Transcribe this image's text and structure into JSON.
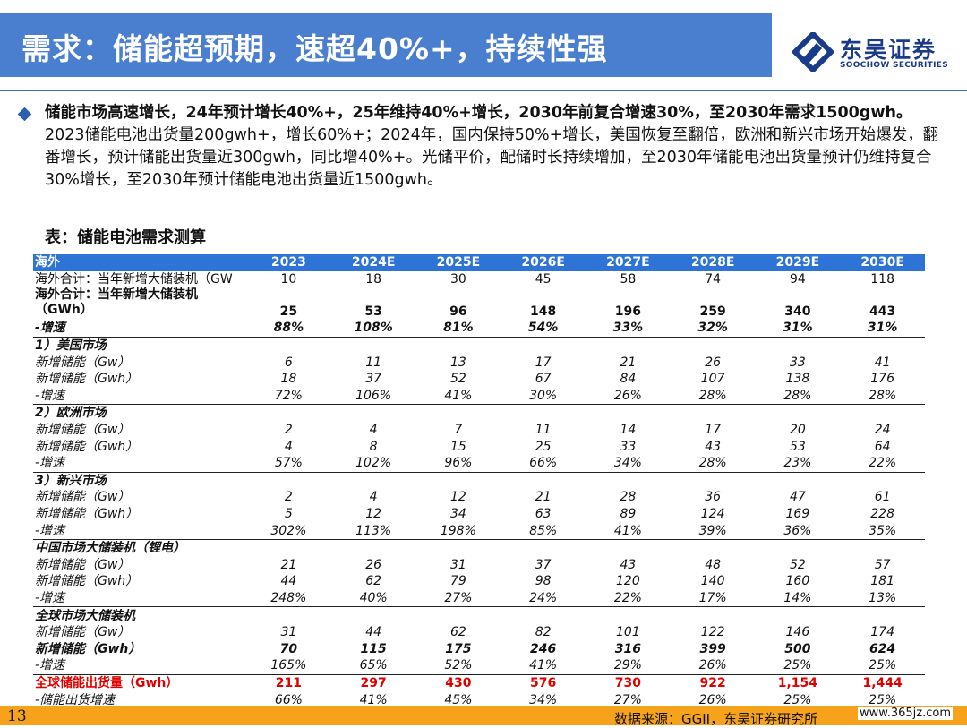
{
  "header": {
    "title": "需求：储能超预期，速超40%+，持续性强",
    "logo_cn": "东吴证券",
    "logo_en": "SOOCHOW SECURITIES"
  },
  "body": {
    "para_bold": "储能市场高速增长，24年预计增长40%+，25年维持40%+增长，2030年前复合增速30%，至2030年需求1500gwh。",
    "para_normal": "2023储能电池出货量200gwh+，增长60%+；2024年，国内保持50%+增长，美国恢复至翻倍，欧洲和新兴市场开始爆发，翻番增长，预计储能出货量近300gwh，同比增40%+。光储平价，配储时长持续增加，至2030年储能电池出货量预计仍维持复合30%增长，至2030年预计储能电池出货量近1500gwh。",
    "table_title": "表：储能电池需求测算"
  },
  "table": {
    "header": [
      "海外",
      "2023",
      "2024E",
      "2025E",
      "2026E",
      "2027E",
      "2028E",
      "2029E",
      "2030E"
    ],
    "rows": [
      {
        "style": "normal",
        "label": "海外合计：当年新增大储装机（GW",
        "values": [
          "10",
          "18",
          "30",
          "45",
          "58",
          "74",
          "94",
          "118"
        ]
      },
      {
        "style": "tall",
        "label": "海外合计：当年新增大储装机（GWh）",
        "values": [
          "25",
          "53",
          "96",
          "148",
          "196",
          "259",
          "340",
          "443"
        ]
      },
      {
        "style": "bolditalic",
        "label": "-增速",
        "values": [
          "88%",
          "108%",
          "81%",
          "54%",
          "33%",
          "32%",
          "31%",
          "31%"
        ]
      },
      {
        "style": "section",
        "label": "1）美国市场",
        "values": [
          "",
          "",
          "",
          "",
          "",
          "",
          "",
          ""
        ]
      },
      {
        "style": "italic",
        "label": "新增储能（Gw）",
        "values": [
          "6",
          "11",
          "13",
          "17",
          "21",
          "26",
          "33",
          "41"
        ]
      },
      {
        "style": "italic",
        "label": "新增储能（Gwh）",
        "values": [
          "18",
          "37",
          "52",
          "67",
          "84",
          "107",
          "138",
          "176"
        ]
      },
      {
        "style": "italic",
        "label": "-增速",
        "values": [
          "72%",
          "106%",
          "41%",
          "30%",
          "26%",
          "28%",
          "28%",
          "28%"
        ]
      },
      {
        "style": "section",
        "label": "2）欧洲市场",
        "values": [
          "",
          "",
          "",
          "",
          "",
          "",
          "",
          ""
        ]
      },
      {
        "style": "italic",
        "label": "新增储能（Gw）",
        "values": [
          "2",
          "4",
          "7",
          "11",
          "14",
          "17",
          "20",
          "24"
        ]
      },
      {
        "style": "italic",
        "label": "新增储能（Gwh）",
        "values": [
          "4",
          "8",
          "15",
          "25",
          "33",
          "43",
          "53",
          "64"
        ]
      },
      {
        "style": "italic",
        "label": "-增速",
        "values": [
          "57%",
          "102%",
          "96%",
          "66%",
          "34%",
          "28%",
          "23%",
          "22%"
        ]
      },
      {
        "style": "section",
        "label": "3）新兴市场",
        "values": [
          "",
          "",
          "",
          "",
          "",
          "",
          "",
          ""
        ]
      },
      {
        "style": "italic",
        "label": "新增储能（Gw）",
        "values": [
          "2",
          "4",
          "12",
          "21",
          "28",
          "36",
          "47",
          "61"
        ]
      },
      {
        "style": "italic",
        "label": "新增储能（Gwh）",
        "values": [
          "5",
          "12",
          "34",
          "63",
          "89",
          "124",
          "169",
          "228"
        ]
      },
      {
        "style": "italic",
        "label": "-增速",
        "values": [
          "302%",
          "113%",
          "198%",
          "85%",
          "41%",
          "39%",
          "36%",
          "35%"
        ]
      },
      {
        "style": "section",
        "label": "中国市场大储装机（锂电）",
        "values": [
          "",
          "",
          "",
          "",
          "",
          "",
          "",
          ""
        ]
      },
      {
        "style": "italic",
        "label": "新增储能（Gw）",
        "values": [
          "21",
          "26",
          "31",
          "37",
          "43",
          "48",
          "52",
          "57"
        ]
      },
      {
        "style": "italic",
        "label": "新增储能（Gwh）",
        "values": [
          "44",
          "62",
          "79",
          "98",
          "120",
          "140",
          "160",
          "181"
        ]
      },
      {
        "style": "italic",
        "label": "-增速",
        "values": [
          "248%",
          "40%",
          "27%",
          "24%",
          "22%",
          "17%",
          "14%",
          "13%"
        ]
      },
      {
        "style": "section",
        "label": "全球市场大储装机",
        "values": [
          "",
          "",
          "",
          "",
          "",
          "",
          "",
          ""
        ]
      },
      {
        "style": "italic",
        "label": "新增储能（Gw）",
        "values": [
          "31",
          "44",
          "62",
          "82",
          "101",
          "122",
          "146",
          "174"
        ]
      },
      {
        "style": "bolditalic",
        "label": "新增储能（Gwh）",
        "values": [
          "70",
          "115",
          "175",
          "246",
          "316",
          "399",
          "500",
          "624"
        ]
      },
      {
        "style": "italic",
        "label": "-增速",
        "values": [
          "165%",
          "65%",
          "52%",
          "41%",
          "29%",
          "26%",
          "25%",
          "25%"
        ]
      },
      {
        "style": "red",
        "label": "全球储能出货量（Gwh）",
        "values": [
          "211",
          "297",
          "430",
          "576",
          "730",
          "922",
          "1,154",
          "1,444"
        ]
      },
      {
        "style": "italic bottom",
        "label": "-储能出货增速",
        "values": [
          "66%",
          "41%",
          "45%",
          "34%",
          "27%",
          "26%",
          "25%",
          "25%"
        ]
      }
    ]
  },
  "footer": {
    "page_number": "13",
    "source": "数据来源：GGII，东吴证券研究所",
    "watermark": "www.365jz.com"
  },
  "colors": {
    "title_bar": "#4a7fd0",
    "table_header": "#2e73d6",
    "highlight_red": "#e00000",
    "footer_bar": "#f6a21a"
  }
}
